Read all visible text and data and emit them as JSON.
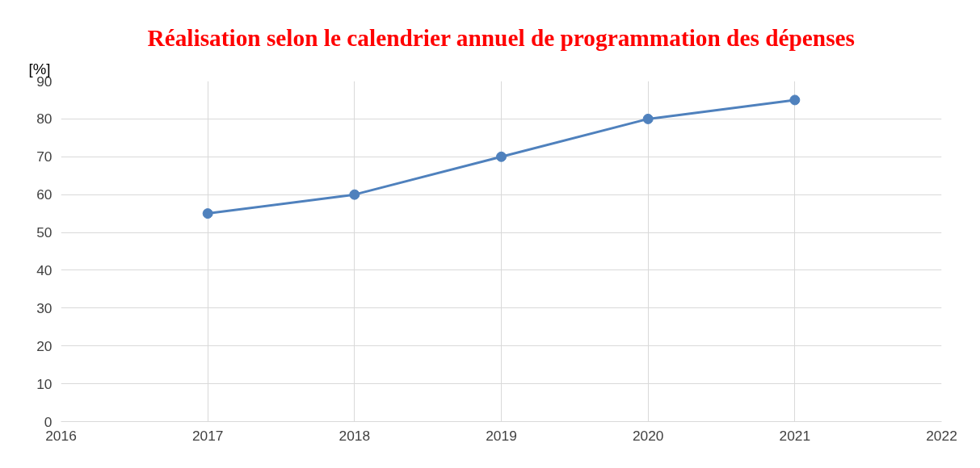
{
  "chart_data": {
    "type": "line",
    "title": "Réalisation selon le calendrier annuel de programmation des dépenses",
    "ylabel": "[%]",
    "x": [
      2017,
      2018,
      2019,
      2020,
      2021
    ],
    "series": [
      {
        "color": "#4f81bd",
        "values": [
          55,
          60,
          70,
          80,
          85
        ]
      }
    ],
    "xlim": [
      2016,
      2022
    ],
    "xticks": [
      2016,
      2017,
      2018,
      2019,
      2020,
      2021,
      2022
    ],
    "ylim": [
      0,
      90
    ],
    "yticks": [
      0,
      10,
      20,
      30,
      40,
      50,
      60,
      70,
      80,
      90
    ],
    "grid": true,
    "marker": "circle",
    "line_style": "solid"
  }
}
